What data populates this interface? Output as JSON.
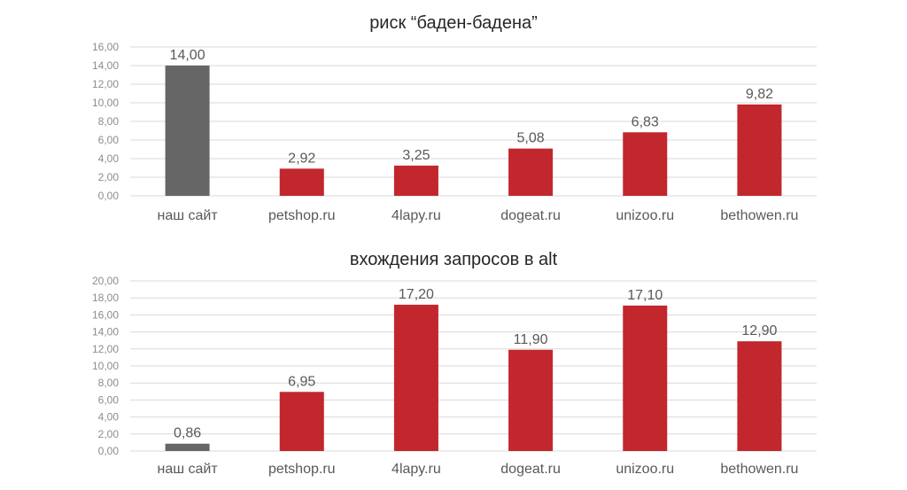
{
  "chart_data": [
    {
      "type": "bar",
      "title": "риск “баден-бадена”",
      "categories": [
        "наш сайт",
        "petshop.ru",
        "4lapy.ru",
        "dogeat.ru",
        "unizoo.ru",
        "bethowen.ru"
      ],
      "values": [
        14.0,
        2.92,
        3.25,
        5.08,
        6.83,
        9.82
      ],
      "value_labels": [
        "14,00",
        "2,92",
        "3,25",
        "5,08",
        "6,83",
        "9,82"
      ],
      "ylim": [
        0,
        16
      ],
      "yticks": [
        "0,00",
        "2,00",
        "4,00",
        "6,00",
        "8,00",
        "10,00",
        "12,00",
        "14,00",
        "16,00"
      ],
      "grid": true,
      "legend": "none",
      "bar_colors": [
        "#666666",
        "#c1272d",
        "#c1272d",
        "#c1272d",
        "#c1272d",
        "#c1272d"
      ]
    },
    {
      "type": "bar",
      "title": "вхождения запросов в alt",
      "categories": [
        "наш сайт",
        "petshop.ru",
        "4lapy.ru",
        "dogeat.ru",
        "unizoo.ru",
        "bethowen.ru"
      ],
      "values": [
        0.86,
        6.95,
        17.2,
        11.9,
        17.1,
        12.9
      ],
      "value_labels": [
        "0,86",
        "6,95",
        "17,20",
        "11,90",
        "17,10",
        "12,90"
      ],
      "ylim": [
        0,
        20
      ],
      "yticks": [
        "0,00",
        "2,00",
        "4,00",
        "6,00",
        "8,00",
        "10,00",
        "12,00",
        "14,00",
        "16,00",
        "18,00",
        "20,00"
      ],
      "grid": true,
      "legend": "none",
      "bar_colors": [
        "#666666",
        "#c1272d",
        "#c1272d",
        "#c1272d",
        "#c1272d",
        "#c1272d"
      ]
    }
  ],
  "colors": {
    "own_site": "#666666",
    "competitor": "#c1272d",
    "grid": "#d9d9d9",
    "tick_text": "#8c8c8c",
    "label_text": "#595959",
    "title_text": "#262626"
  }
}
